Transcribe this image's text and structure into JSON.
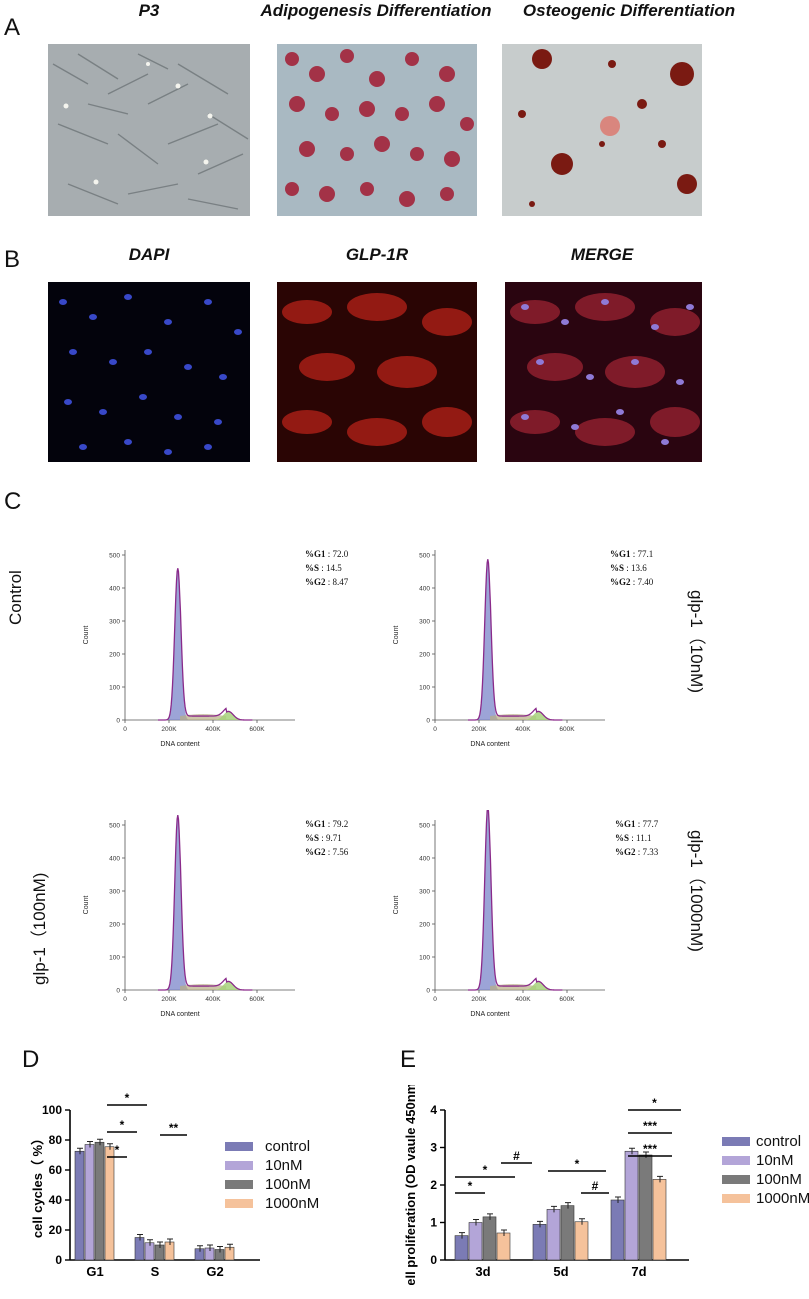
{
  "panel_labels": {
    "A": "A",
    "B": "B",
    "C": "C",
    "D": "D",
    "E": "E"
  },
  "panelA": {
    "titles": [
      "P3",
      "Adipogenesis Differentiation",
      "Osteogenic Differentiation"
    ]
  },
  "panelB": {
    "titles": [
      "DAPI",
      "GLP-1R",
      "MERGE"
    ]
  },
  "panelC": {
    "row_labels": [
      "Control",
      "glp-1（10nM)",
      "glp-1（100nM)",
      "glp-1（1000nM)"
    ],
    "xlabel": "DNA content",
    "xticks": [
      "0",
      "200K",
      "400K",
      "600K"
    ],
    "ylabel": "Count",
    "plots": [
      {
        "yticks": [
          "0",
          "100",
          "200",
          "300",
          "400",
          "500"
        ],
        "g1": "72.0",
        "s": "14.5",
        "g2": "8.47",
        "peak": 460
      },
      {
        "yticks": [
          "0",
          "100",
          "200",
          "300",
          "400",
          "500"
        ],
        "g1": "77.1",
        "s": "13.6",
        "g2": "7.40",
        "peak": 487
      },
      {
        "yticks": [
          "0",
          "100",
          "200",
          "300",
          "400",
          "500"
        ],
        "g1": "79.2",
        "s": "9.71",
        "g2": "7.56",
        "peak": 530
      },
      {
        "yticks": [
          "0",
          "100",
          "200",
          "300",
          "400",
          "500"
        ],
        "g1": "77.7",
        "s": "11.1",
        "g2": "7.33",
        "peak": 555
      }
    ],
    "stat_labels": {
      "g1": "%G1",
      "s": "%S",
      "g2": "%G2"
    }
  },
  "colors": {
    "control": "#7b7bb5",
    "10nM": "#b3a5d8",
    "100nM": "#7a7a7a",
    "1000nM": "#f5c29b"
  },
  "chart_data": [
    {
      "type": "bar",
      "ylabel": "cell cycles（ %）",
      "categories": [
        "G1",
        "S",
        "G2"
      ],
      "ylim": [
        0,
        100
      ],
      "yticks": [
        "0",
        "20",
        "40",
        "60",
        "80",
        "100"
      ],
      "series": [
        {
          "name": "control",
          "values": [
            72.5,
            15,
            7.5
          ]
        },
        {
          "name": "10nM",
          "values": [
            77,
            11.5,
            8
          ]
        },
        {
          "name": "100nM",
          "values": [
            78.5,
            10,
            7
          ]
        },
        {
          "name": "1000nM",
          "values": [
            75.5,
            12,
            8.5
          ]
        }
      ],
      "significance": [
        "*",
        "*",
        "*",
        "**"
      ]
    },
    {
      "type": "bar",
      "ylabel": "Cell proliferation (OD vaule 450nm )",
      "categories": [
        "3d",
        "5d",
        "7d"
      ],
      "ylim": [
        0,
        4
      ],
      "yticks": [
        "0",
        "1",
        "2",
        "3",
        "4"
      ],
      "series": [
        {
          "name": "control",
          "values": [
            0.65,
            0.95,
            1.6
          ]
        },
        {
          "name": "10nM",
          "values": [
            1.0,
            1.35,
            2.9
          ]
        },
        {
          "name": "100nM",
          "values": [
            1.15,
            1.45,
            2.8
          ]
        },
        {
          "name": "1000nM",
          "values": [
            0.72,
            1.02,
            2.15
          ]
        }
      ],
      "significance": [
        "*",
        "*",
        "#",
        "*",
        "#",
        "***",
        "***",
        "*"
      ]
    }
  ]
}
